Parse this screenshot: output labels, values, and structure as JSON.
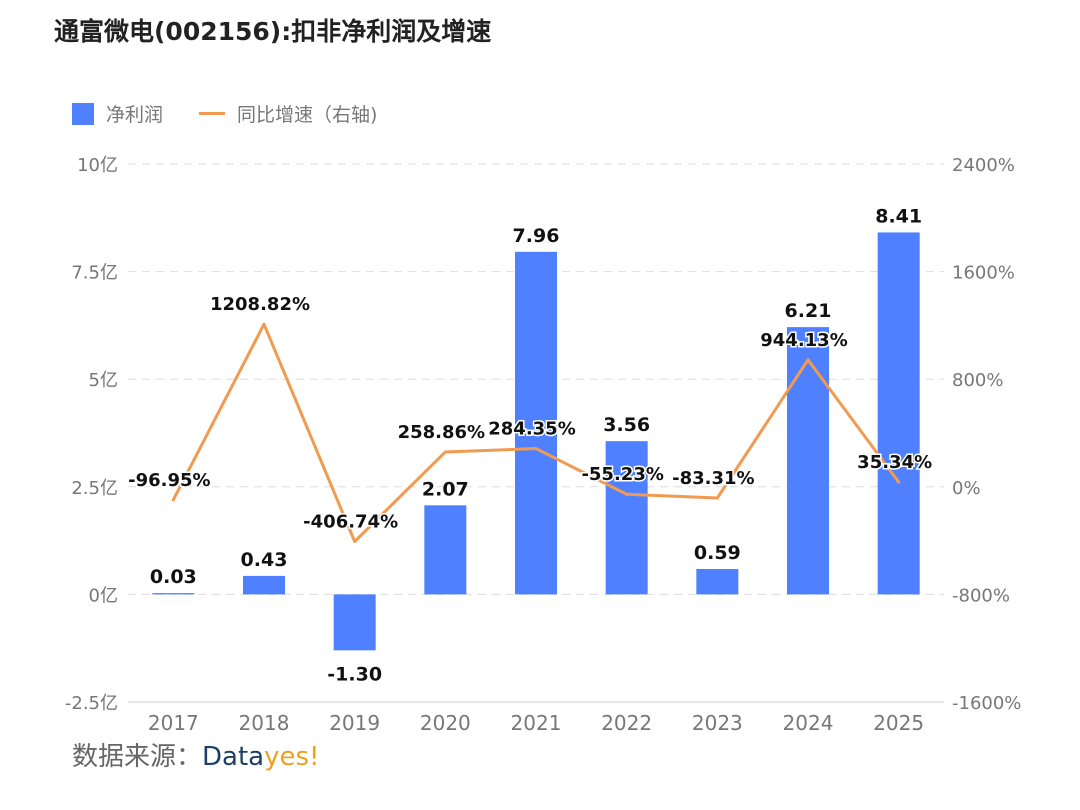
{
  "title": "通富微电(002156):扣非净利润及增速",
  "legend": {
    "bar_label": "净利润",
    "line_label": "同比增速（右轴)"
  },
  "source": {
    "label": "数据来源：",
    "brand_part1": "Data",
    "brand_part2": "yes!"
  },
  "colors": {
    "bar": "#4f80ff",
    "line": "#f29a4f",
    "grid": "#dddddd",
    "axis_text": "#777777",
    "label_text": "#111111"
  },
  "chart_data": {
    "type": "bar",
    "title": "通富微电(002156):扣非净利润及增速",
    "categories": [
      "2017",
      "2018",
      "2019",
      "2020",
      "2021",
      "2022",
      "2023",
      "2024",
      "2025"
    ],
    "series": [
      {
        "name": "净利润",
        "type": "bar",
        "axis": "left",
        "values": [
          0.03,
          0.43,
          -1.3,
          2.07,
          7.96,
          3.56,
          0.59,
          6.21,
          8.41
        ],
        "labels": [
          "0.03",
          "0.43",
          "-1.30",
          "2.07",
          "7.96",
          "3.56",
          "0.59",
          "6.21",
          "8.41"
        ]
      },
      {
        "name": "同比增速（右轴)",
        "type": "line",
        "axis": "right",
        "values": [
          -96.95,
          1208.82,
          -406.74,
          258.86,
          284.35,
          -55.23,
          -83.31,
          944.13,
          35.34
        ],
        "labels": [
          "-96.95%",
          "1208.82%",
          "-406.74%",
          "258.86%",
          "284.35%",
          "-55.23%",
          "-83.31%",
          "944.13%",
          "35.34%"
        ]
      }
    ],
    "y_left": {
      "min": -2.5,
      "max": 10,
      "ticks": [
        -2.5,
        0,
        2.5,
        5,
        7.5,
        10
      ],
      "tick_labels": [
        "-2.5亿",
        "0亿",
        "2.5亿",
        "5亿",
        "7.5亿",
        "10亿"
      ]
    },
    "y_right": {
      "min": -1600,
      "max": 2400,
      "ticks": [
        -1600,
        -800,
        0,
        800,
        1600,
        2400
      ],
      "tick_labels": [
        "-1600%",
        "-800%",
        "0%",
        "800%",
        "1600%",
        "2400%"
      ]
    },
    "grid": true,
    "legend_position": "top-left"
  }
}
